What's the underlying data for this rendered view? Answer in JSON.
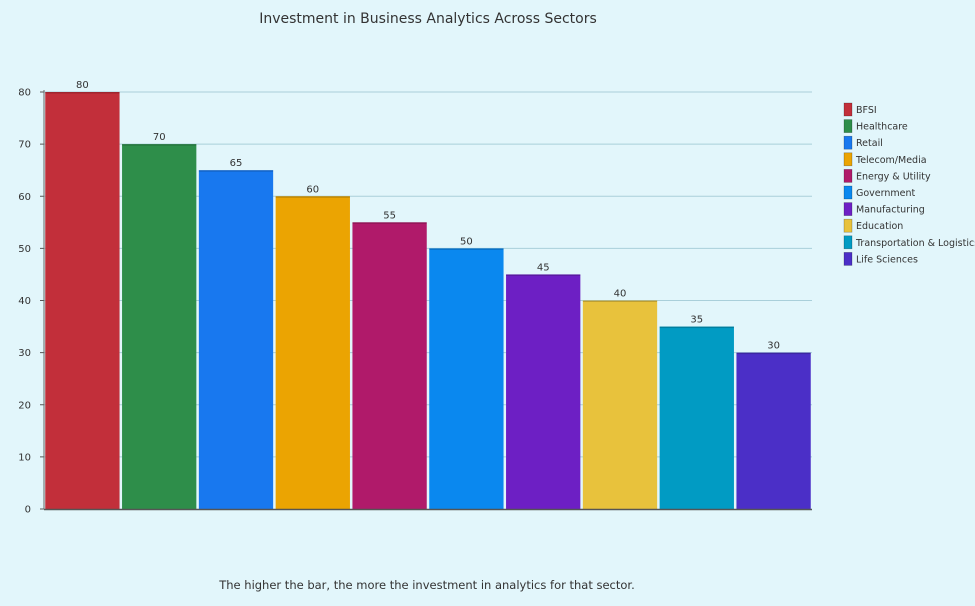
{
  "chart_data": {
    "type": "bar",
    "title": "Investment in Business Analytics Across Sectors",
    "caption": "The higher the bar, the more the investment in analytics for that sector.",
    "xlabel": "",
    "ylabel": "",
    "ylim": [
      0,
      80
    ],
    "yticks": [
      "0",
      "10",
      "20",
      "30",
      "40",
      "50",
      "60",
      "70",
      "80"
    ],
    "grid": true,
    "legend_position": "right",
    "categories": [
      "BFSI",
      "Healthcare",
      "Retail",
      "Telecom/Media",
      "Energy & Utility",
      "Government",
      "Manufacturing",
      "Education",
      "Transportation & Logistics",
      "Life Sciences"
    ],
    "values": [
      80,
      70,
      65,
      60,
      55,
      50,
      45,
      40,
      35,
      30
    ],
    "value_labels": [
      "80",
      "70",
      "65",
      "60",
      "55",
      "50",
      "45",
      "40",
      "35",
      "30"
    ],
    "colors": [
      "#c22f3a",
      "#2e8e4a",
      "#1878ef",
      "#eba402",
      "#b01a6a",
      "#0a88ef",
      "#6d1fc4",
      "#e8c23c",
      "#019bc3",
      "#4b2fc7"
    ]
  }
}
